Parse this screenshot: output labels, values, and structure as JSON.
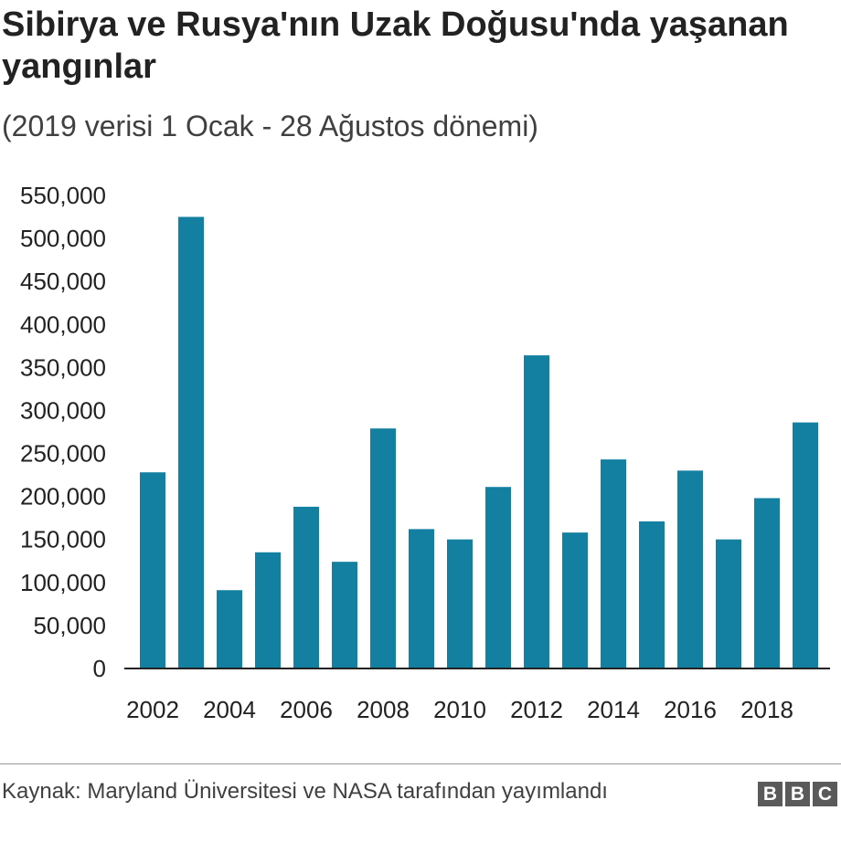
{
  "chart_data": {
    "type": "bar",
    "title": "Sibirya ve Rusya'nın Uzak Doğusu'nda yaşanan yangınlar",
    "subtitle": "(2019 verisi 1 Ocak - 28 Ağustos dönemi)",
    "categories": [
      "2002",
      "2003",
      "2004",
      "2005",
      "2006",
      "2007",
      "2008",
      "2009",
      "2010",
      "2011",
      "2012",
      "2013",
      "2014",
      "2015",
      "2016",
      "2017",
      "2018",
      "2019"
    ],
    "values": [
      227000,
      524000,
      90000,
      134000,
      187000,
      123000,
      278000,
      161000,
      149000,
      210000,
      363000,
      157000,
      242000,
      170000,
      229000,
      149000,
      197000,
      285000
    ],
    "xtick_labels": [
      "2002",
      "2004",
      "2006",
      "2008",
      "2010",
      "2012",
      "2014",
      "2016",
      "2018"
    ],
    "ytick_labels": [
      "0",
      "50,000",
      "100,000",
      "150,000",
      "200,000",
      "250,000",
      "300,000",
      "350,000",
      "400,000",
      "450,000",
      "500,000",
      "550,000"
    ],
    "ylim": [
      0,
      550000
    ],
    "grid": false,
    "color": "#1380A1",
    "xlabel": "",
    "ylabel": ""
  },
  "footer": {
    "source": "Kaynak: Maryland Üniversitesi ve NASA tarafından yayımlandı",
    "logo": "BBC"
  }
}
